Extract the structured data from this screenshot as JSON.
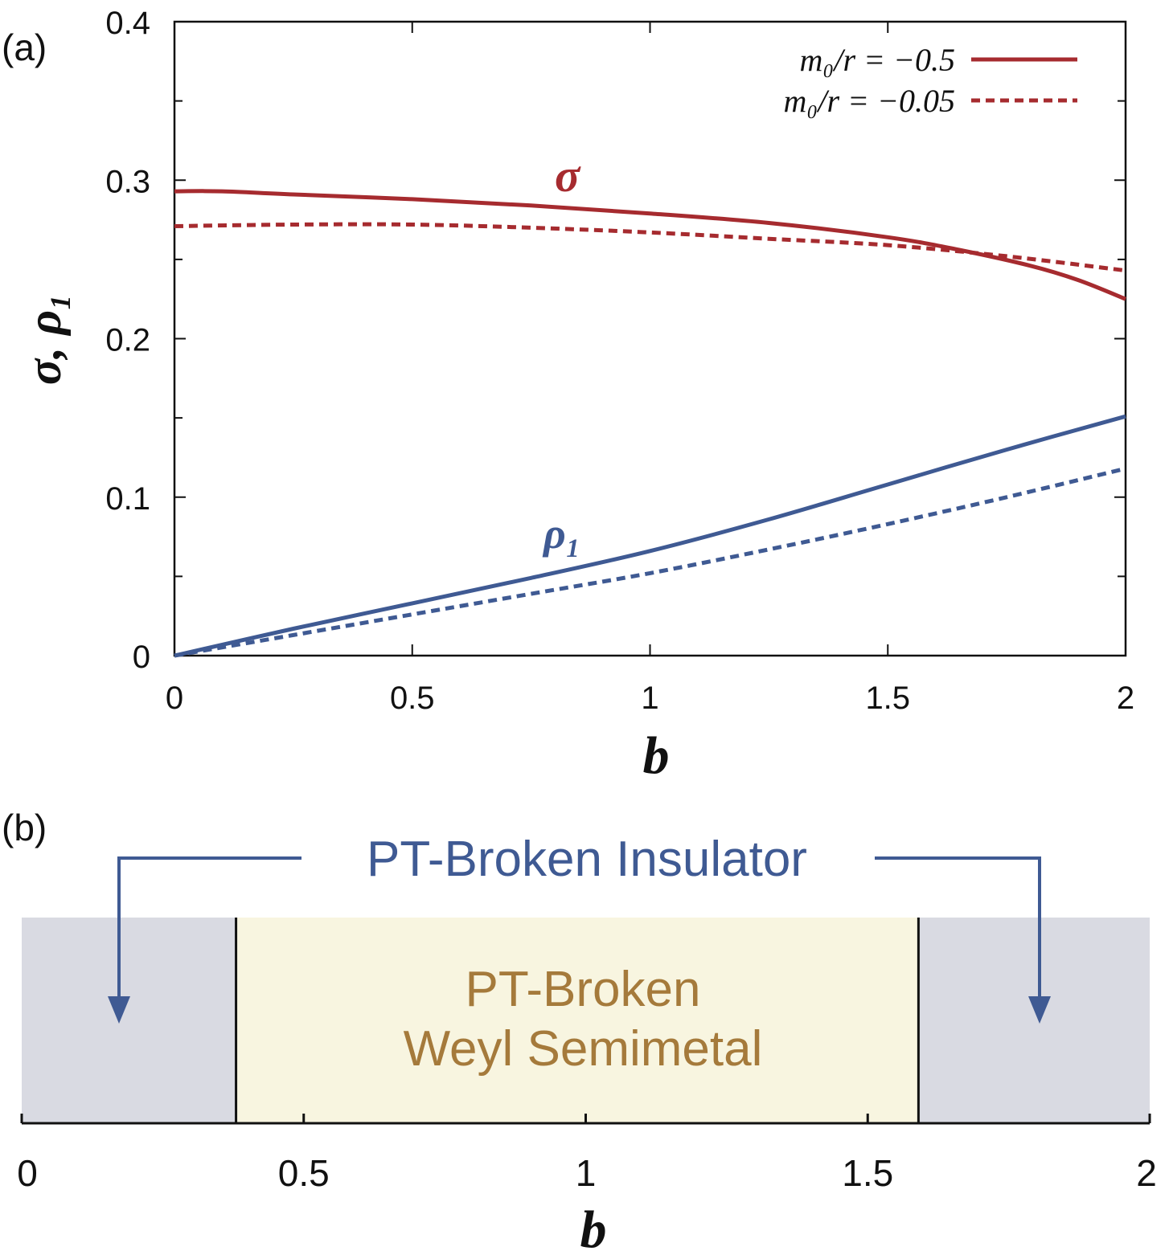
{
  "chart_data": [
    {
      "type": "line",
      "panel_label": "(a)",
      "xlabel": "b",
      "ylabel": "σ, ρ₁",
      "xlim": [
        0,
        2
      ],
      "ylim": [
        0,
        0.4
      ],
      "x_ticks": [
        0,
        0.5,
        1,
        1.5,
        2
      ],
      "x_tick_labels": [
        "0",
        "0.5",
        "1",
        "1.5",
        "2"
      ],
      "y_ticks": [
        0,
        0.1,
        0.2,
        0.3,
        0.4
      ],
      "y_tick_labels": [
        "0",
        "0.1",
        "0.2",
        "0.3",
        "0.4"
      ],
      "grid": false,
      "legend_position": "top-right",
      "legend": [
        {
          "label": "m₀/r = −0.5",
          "style": "solid"
        },
        {
          "label": "m₀/r = −0.05",
          "style": "dashed"
        }
      ],
      "annotations": [
        {
          "text": "σ",
          "color": "#a62b2f"
        },
        {
          "text": "ρ₁",
          "color": "#3f5a93"
        }
      ],
      "series": [
        {
          "name": "σ, m₀/r = −0.5",
          "quantity": "sigma",
          "style": "solid",
          "color": "#a62b2f",
          "x": [
            0,
            0.1,
            0.25,
            0.5,
            0.75,
            1.0,
            1.25,
            1.5,
            1.65,
            1.8,
            1.9,
            2.0
          ],
          "y": [
            0.293,
            0.293,
            0.291,
            0.288,
            0.284,
            0.279,
            0.273,
            0.264,
            0.256,
            0.246,
            0.237,
            0.225
          ]
        },
        {
          "name": "σ, m₀/r = −0.05",
          "quantity": "sigma",
          "style": "dashed",
          "color": "#a62b2f",
          "x": [
            0,
            0.25,
            0.5,
            0.75,
            1.0,
            1.25,
            1.5,
            1.75,
            2.0
          ],
          "y": [
            0.271,
            0.272,
            0.272,
            0.27,
            0.267,
            0.263,
            0.259,
            0.252,
            0.243
          ]
        },
        {
          "name": "ρ₁, m₀/r = −0.5",
          "quantity": "rho1",
          "style": "solid",
          "color": "#3f5a93",
          "x": [
            0,
            0.25,
            0.5,
            0.75,
            1.0,
            1.25,
            1.5,
            1.75,
            2.0
          ],
          "y": [
            0,
            0.017,
            0.033,
            0.049,
            0.066,
            0.086,
            0.108,
            0.13,
            0.151
          ]
        },
        {
          "name": "ρ₁, m₀/r = −0.05",
          "quantity": "rho1",
          "style": "dashed",
          "color": "#3f5a93",
          "x": [
            0,
            0.25,
            0.5,
            0.75,
            1.0,
            1.25,
            1.5,
            1.75,
            2.0
          ],
          "y": [
            0,
            0.013,
            0.026,
            0.039,
            0.052,
            0.067,
            0.083,
            0.1,
            0.118
          ]
        }
      ]
    },
    {
      "type": "phase-diagram",
      "panel_label": "(b)",
      "xlabel": "b",
      "xlim": [
        0,
        2
      ],
      "x_ticks": [
        0,
        0.5,
        1,
        1.5,
        2
      ],
      "x_tick_labels": [
        "0",
        "0.5",
        "1",
        "1.5",
        "2"
      ],
      "boundaries": [
        0.38,
        1.59
      ],
      "regions": [
        {
          "name": "PT-Broken Insulator",
          "from": 0,
          "to": 0.38,
          "color": "#d9dae2"
        },
        {
          "name": "PT-Broken Weyl Semimetal",
          "from": 0.38,
          "to": 1.59,
          "color": "#f8f5e0"
        },
        {
          "name": "PT-Broken Insulator",
          "from": 1.59,
          "to": 2,
          "color": "#d9dae2"
        }
      ],
      "labels": {
        "insulator": "PT-Broken Insulator",
        "weyl_line1": "PT-Broken",
        "weyl_line2": "Weyl Semimetal"
      },
      "label_colors": {
        "insulator": "#3f5a93",
        "weyl": "#a57a3b"
      }
    }
  ]
}
